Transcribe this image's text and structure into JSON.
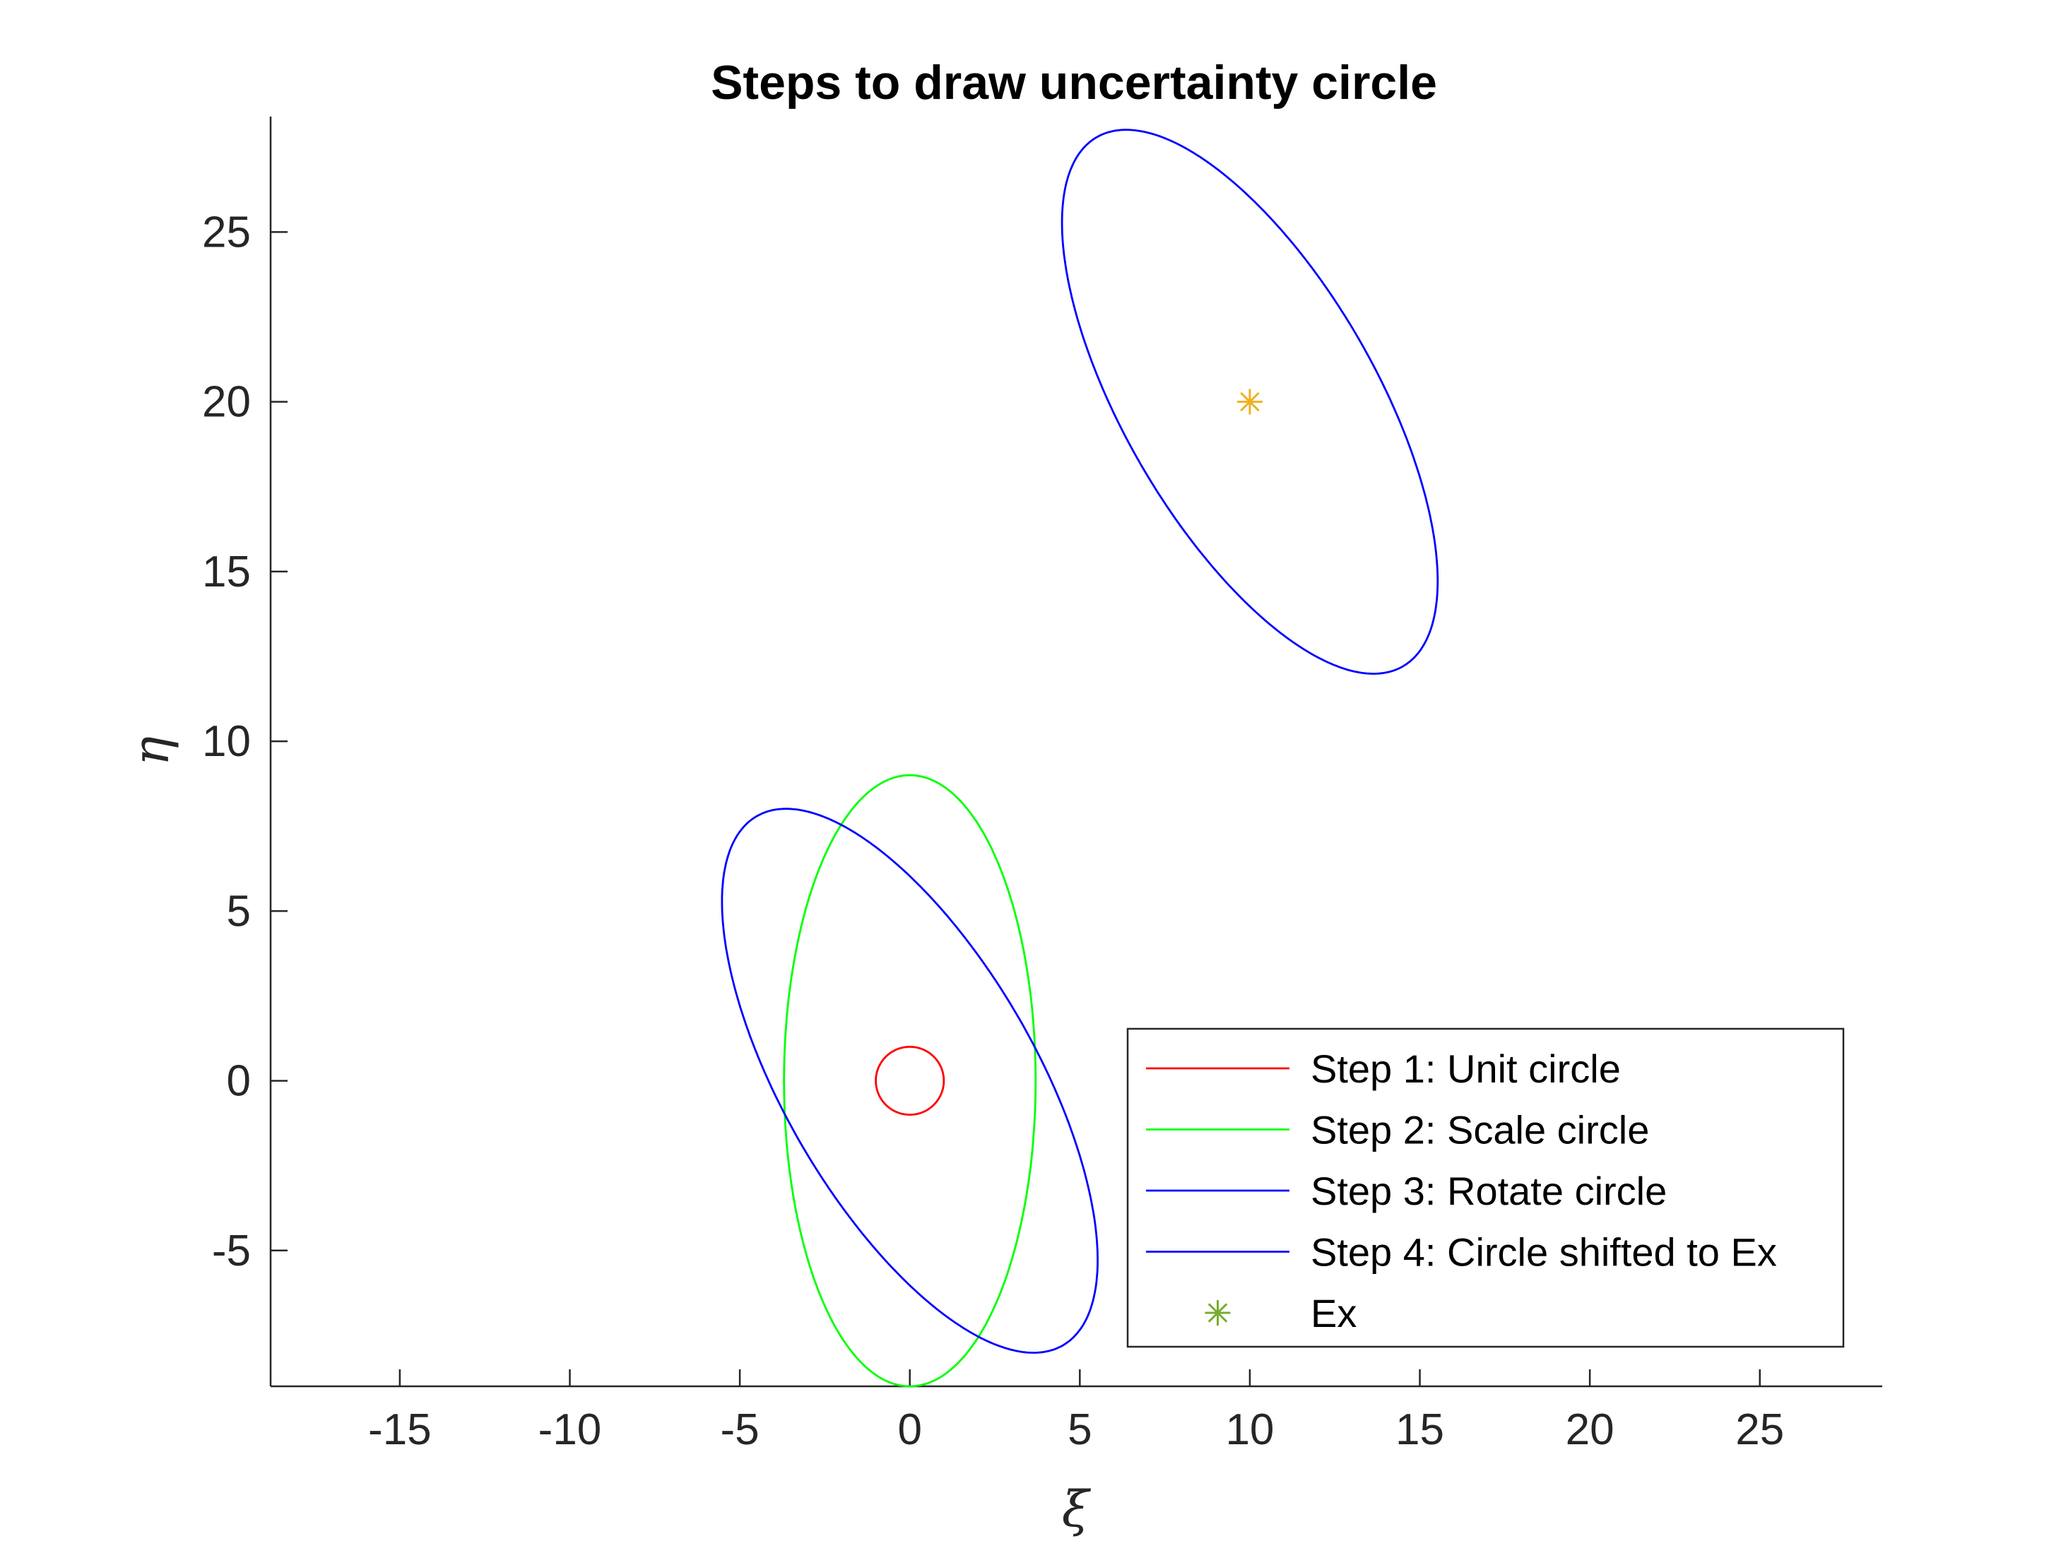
{
  "chart_data": {
    "type": "line",
    "title": "Steps to draw uncertainty circle",
    "xlabel": "ξ",
    "ylabel": "η",
    "xlim": [
      -18.8,
      28.6
    ],
    "ylim": [
      -9,
      28.4
    ],
    "xticks": [
      -15,
      -10,
      -5,
      0,
      5,
      10,
      15,
      20,
      25
    ],
    "yticks": [
      -5,
      0,
      5,
      10,
      15,
      20,
      25
    ],
    "xtick_labels": [
      "-15",
      "-10",
      "-5",
      "0",
      "5",
      "10",
      "15",
      "20",
      "25"
    ],
    "ytick_labels": [
      "-5",
      "0",
      "5",
      "10",
      "15",
      "20",
      "25"
    ],
    "grid": false,
    "legend_position": "bottom-right",
    "series": [
      {
        "name": "Step 1: Unit circle",
        "kind": "ellipse",
        "color": "#ff0000",
        "center": [
          0,
          0
        ],
        "semi_axes": [
          1,
          1
        ],
        "rotation_deg": 0
      },
      {
        "name": "Step 2: Scale circle",
        "kind": "ellipse",
        "color": "#00ff00",
        "center": [
          0,
          0
        ],
        "semi_axes": [
          3.7,
          9
        ],
        "rotation_deg": 0
      },
      {
        "name": "Step 3: Rotate circle",
        "kind": "ellipse",
        "color": "#0000ff",
        "center": [
          0,
          0
        ],
        "semi_axes": [
          3.7,
          9
        ],
        "rotation_deg": 30
      },
      {
        "name": "Step 4: Circle shifted to Ex",
        "kind": "ellipse",
        "color": "#0000ff",
        "center": [
          10,
          20
        ],
        "semi_axes": [
          3.7,
          9
        ],
        "rotation_deg": 30
      },
      {
        "name": "Ex",
        "kind": "marker",
        "marker": "asterisk",
        "color": "#edb120",
        "legend_color": "#77ac30",
        "x": [
          10
        ],
        "y": [
          20
        ]
      }
    ]
  }
}
